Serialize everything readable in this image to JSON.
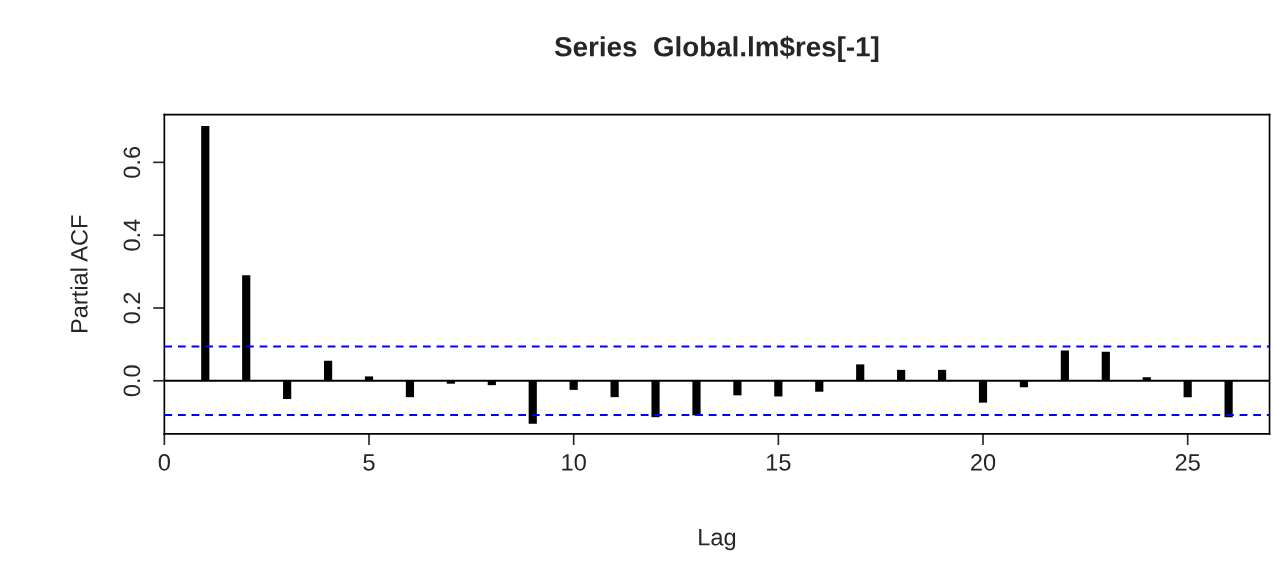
{
  "chart_data": {
    "type": "bar",
    "title": "Series  Global.lm$res[-1]",
    "xlabel": "Lag",
    "ylabel": "Partial ACF",
    "x": [
      1,
      2,
      3,
      4,
      5,
      6,
      7,
      8,
      9,
      10,
      11,
      12,
      13,
      14,
      15,
      16,
      17,
      18,
      19,
      20,
      21,
      22,
      23,
      24,
      25,
      26
    ],
    "values": [
      0.7,
      0.29,
      -0.05,
      0.055,
      0.012,
      -0.045,
      -0.008,
      -0.012,
      -0.118,
      -0.025,
      -0.045,
      -0.1,
      -0.095,
      -0.04,
      -0.043,
      -0.03,
      0.045,
      0.03,
      0.03,
      -0.06,
      -0.018,
      0.083,
      0.08,
      0.01,
      -0.045,
      -0.1
    ],
    "color": "#000000",
    "xlim": [
      0,
      27
    ],
    "xticks": [
      0,
      5,
      10,
      15,
      20,
      25
    ],
    "ylim": [
      -0.146,
      0.731
    ],
    "yticks": [
      {
        "value": 0,
        "label": "0.0"
      },
      {
        "value": 0.2,
        "label": "0.2"
      },
      {
        "value": 0.4,
        "label": "0.4"
      },
      {
        "value": 0.6,
        "label": "0.6"
      }
    ],
    "ref_lines": [
      {
        "axis": "y",
        "value": 0,
        "color": "#000000",
        "line_style": "solid"
      },
      {
        "axis": "y",
        "value": 0.094,
        "color": "#0000ff",
        "line_style": "dashed"
      },
      {
        "axis": "y",
        "value": -0.094,
        "color": "#0000ff",
        "line_style": "dashed"
      }
    ],
    "grid": false,
    "legend": false
  }
}
